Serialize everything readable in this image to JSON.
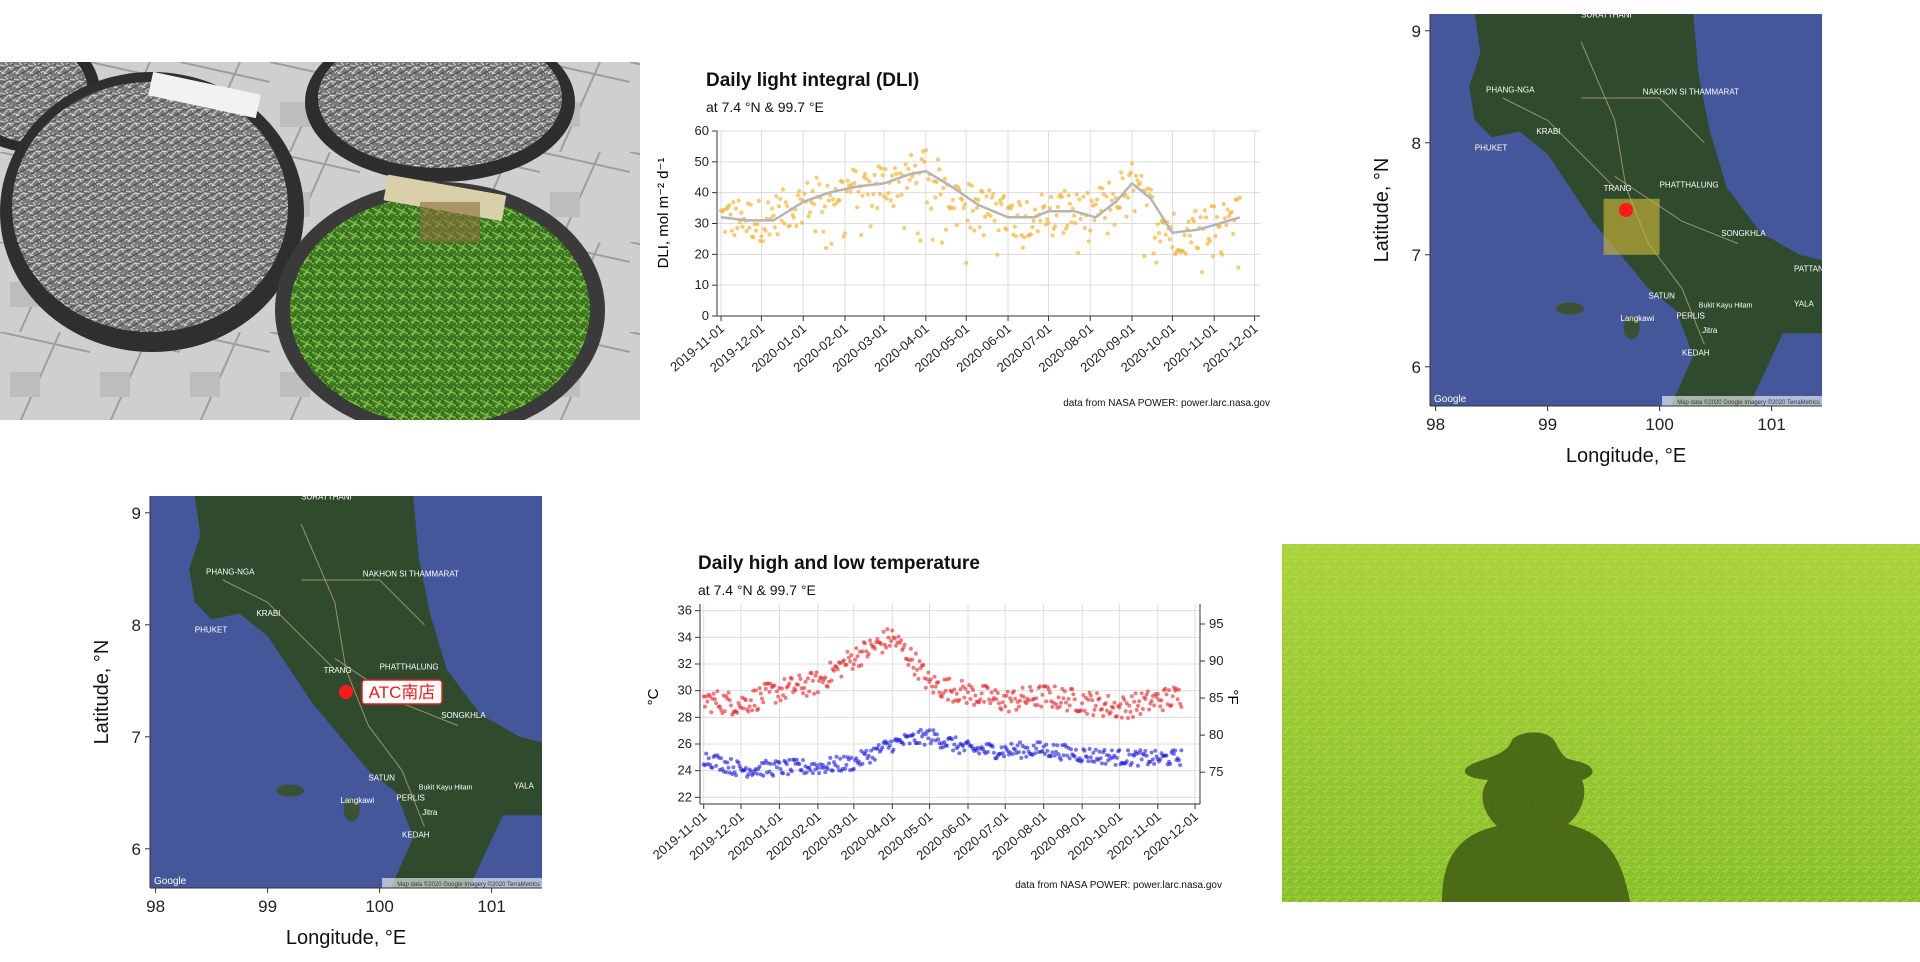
{
  "dli_panel": {
    "title": "Daily light integral (DLI)",
    "subtitle": "at 7.4 °N & 99.7 °E",
    "caption": "data from NASA POWER: power.larc.nasa.gov",
    "ylabel": "DLI, mol m⁻² d⁻¹"
  },
  "temp_panel": {
    "title": "Daily high and low temperature",
    "subtitle": "at 7.4 °N & 99.7 °E",
    "caption": "data from NASA POWER: power.larc.nasa.gov",
    "ylabel_left": "°C",
    "ylabel_right": "°F"
  },
  "map_top": {
    "xlabel": "Longitude, °E",
    "ylabel": "Latitude, °N",
    "attribution": "Map data ©2020 Google Imagery ©2020 TerraMetrics",
    "logo": "Google",
    "place_labels": [
      "SURATTHANI",
      "PHANG-NGA",
      "NAKHON SI THAMMARAT",
      "KRABI",
      "PHUKET",
      "TRANG",
      "PHATTHALUNG",
      "SONGKHLA",
      "SATUN",
      "PERLIS",
      "Langkawi",
      "KEDAH",
      "PATTANI",
      "YALA",
      "Bukit Kayu Hitam",
      "Jitra"
    ]
  },
  "map_bottom": {
    "xlabel": "Longitude, °E",
    "ylabel": "Latitude, °N",
    "attribution": "Map data ©2020 Google Imagery ©2020 TerraMetrics",
    "logo": "Google",
    "marker_label": "ATC南店",
    "place_labels": [
      "SURATTHANI",
      "PHANG-NGA",
      "NAKHON SI THAMMARAT",
      "KRABI",
      "PHUKET",
      "TRANG",
      "PHATTHALUNG",
      "SONGKHLA",
      "SATUN",
      "PERLIS",
      "Langkawi",
      "KEDAH",
      "YALA",
      "Bukit Kayu Hitam",
      "Jitra"
    ]
  },
  "colors": {
    "dli_points": "#f2b43c",
    "dli_smooth": "#b5b5b5",
    "temp_high": "#e0242a",
    "temp_low": "#1a1ad6",
    "marker": "#ff1a1a",
    "highlight_box": "#c8b43a"
  },
  "chart_data": [
    {
      "type": "scatter",
      "id": "dli",
      "title": "Daily light integral (DLI)",
      "ylabel": "DLI, mol m⁻² d⁻¹",
      "ylim": [
        0,
        60
      ],
      "yticks": [
        0,
        10,
        20,
        30,
        40,
        50,
        60
      ],
      "xlim": [
        "2019-10-29",
        "2020-12-05"
      ],
      "xticks": [
        "2019-11-01",
        "2019-12-01",
        "2020-01-01",
        "2020-02-01",
        "2020-03-01",
        "2020-04-01",
        "2020-05-01",
        "2020-06-01",
        "2020-07-01",
        "2020-08-01",
        "2020-09-01",
        "2020-10-01",
        "2020-11-01",
        "2020-12-01"
      ],
      "grid": true,
      "series": [
        {
          "values_kind": "daily points",
          "start": "2019-11-01",
          "end": "2020-11-20",
          "trend": [
            [
              "2019-11-01",
              32
            ],
            [
              "2019-12-01",
              31
            ],
            [
              "2020-01-01",
              37
            ],
            [
              "2020-02-01",
              41
            ],
            [
              "2020-03-01",
              43
            ],
            [
              "2020-04-01",
              47
            ],
            [
              "2020-05-01",
              37
            ],
            [
              "2020-06-01",
              32
            ],
            [
              "2020-07-01",
              34
            ],
            [
              "2020-08-01",
              33
            ],
            [
              "2020-09-01",
              43
            ],
            [
              "2020-10-01",
              27
            ],
            [
              "2020-11-01",
              30
            ],
            [
              "2020-11-20",
              32
            ]
          ],
          "spread": 7
        }
      ],
      "smooth": [
        [
          "2019-11-01",
          32
        ],
        [
          "2019-11-20",
          31
        ],
        [
          "2019-12-10",
          31
        ],
        [
          "2020-01-01",
          37
        ],
        [
          "2020-01-20",
          40
        ],
        [
          "2020-02-10",
          42
        ],
        [
          "2020-03-01",
          43
        ],
        [
          "2020-03-20",
          46
        ],
        [
          "2020-04-01",
          47
        ],
        [
          "2020-04-20",
          42
        ],
        [
          "2020-05-10",
          36
        ],
        [
          "2020-06-01",
          32
        ],
        [
          "2020-06-20",
          32
        ],
        [
          "2020-07-01",
          34
        ],
        [
          "2020-07-20",
          34
        ],
        [
          "2020-08-05",
          32
        ],
        [
          "2020-08-20",
          37
        ],
        [
          "2020-09-01",
          43
        ],
        [
          "2020-09-15",
          38
        ],
        [
          "2020-10-01",
          27
        ],
        [
          "2020-10-20",
          28
        ],
        [
          "2020-11-05",
          30
        ],
        [
          "2020-11-20",
          32
        ]
      ]
    },
    {
      "type": "scatter",
      "id": "temperature",
      "title": "Daily high and low temperature",
      "ylabel": "°C",
      "ylim": [
        21.5,
        36.5
      ],
      "yticks": [
        22,
        24,
        26,
        28,
        30,
        32,
        34,
        36
      ],
      "y2label": "°F",
      "y2ticks": [
        75,
        80,
        85,
        90,
        95
      ],
      "xlim": [
        "2019-10-29",
        "2020-12-05"
      ],
      "xticks": [
        "2019-11-01",
        "2019-12-01",
        "2020-01-01",
        "2020-02-01",
        "2020-03-01",
        "2020-04-01",
        "2020-05-01",
        "2020-06-01",
        "2020-07-01",
        "2020-08-01",
        "2020-09-01",
        "2020-10-01",
        "2020-11-01",
        "2020-12-01"
      ],
      "grid": true,
      "series": [
        {
          "name_kind": "high",
          "start": "2019-11-01",
          "end": "2020-11-20",
          "trend": [
            [
              "2019-11-01",
              29.3
            ],
            [
              "2019-12-01",
              29.0
            ],
            [
              "2020-01-01",
              30.0
            ],
            [
              "2020-02-01",
              30.6
            ],
            [
              "2020-03-01",
              32.5
            ],
            [
              "2020-04-01",
              34.0
            ],
            [
              "2020-04-20",
              32.0
            ],
            [
              "2020-05-01",
              30.5
            ],
            [
              "2020-06-01",
              29.8
            ],
            [
              "2020-07-01",
              29.2
            ],
            [
              "2020-08-01",
              29.6
            ],
            [
              "2020-09-01",
              29.2
            ],
            [
              "2020-10-01",
              28.7
            ],
            [
              "2020-11-01",
              29.3
            ],
            [
              "2020-11-20",
              29.6
            ]
          ],
          "spread": 0.9
        },
        {
          "name_kind": "low",
          "start": "2019-11-01",
          "end": "2020-11-20",
          "trend": [
            [
              "2019-11-01",
              25.0
            ],
            [
              "2019-12-01",
              24.1
            ],
            [
              "2020-01-01",
              24.2
            ],
            [
              "2020-02-01",
              24.3
            ],
            [
              "2020-03-01",
              24.6
            ],
            [
              "2020-04-01",
              26.0
            ],
            [
              "2020-05-01",
              26.6
            ],
            [
              "2020-06-01",
              25.6
            ],
            [
              "2020-07-01",
              25.5
            ],
            [
              "2020-08-01",
              25.6
            ],
            [
              "2020-09-01",
              25.2
            ],
            [
              "2020-10-01",
              25.0
            ],
            [
              "2020-11-01",
              24.9
            ],
            [
              "2020-11-20",
              25.0
            ]
          ],
          "spread": 0.6
        }
      ]
    },
    {
      "type": "map",
      "id": "map-top",
      "xlabel": "Longitude, °E",
      "ylabel": "Latitude, °N",
      "xlim": [
        97.95,
        101.45
      ],
      "ylim": [
        5.65,
        9.15
      ],
      "xticks": [
        98,
        99,
        100,
        101
      ],
      "yticks": [
        6,
        7,
        8,
        9
      ],
      "marker": [
        99.7,
        7.4
      ],
      "highlight_box": [
        [
          99.5,
          100.0
        ],
        [
          7.0,
          7.5
        ]
      ]
    },
    {
      "type": "map",
      "id": "map-bottom",
      "xlabel": "Longitude, °E",
      "ylabel": "Latitude, °N",
      "xlim": [
        97.95,
        101.45
      ],
      "ylim": [
        5.65,
        9.15
      ],
      "xticks": [
        98,
        99,
        100,
        101
      ],
      "yticks": [
        6,
        7,
        8,
        9
      ],
      "marker": [
        99.7,
        7.4
      ]
    }
  ]
}
